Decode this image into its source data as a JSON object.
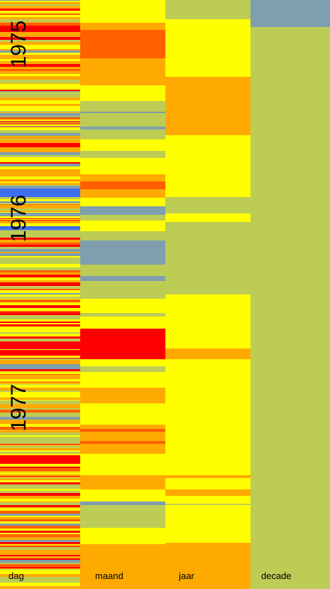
{
  "year_labels": [
    "1975",
    "1976",
    "1977"
  ],
  "columns": [
    "dag",
    "maand",
    "jaar",
    "decade"
  ]
}
